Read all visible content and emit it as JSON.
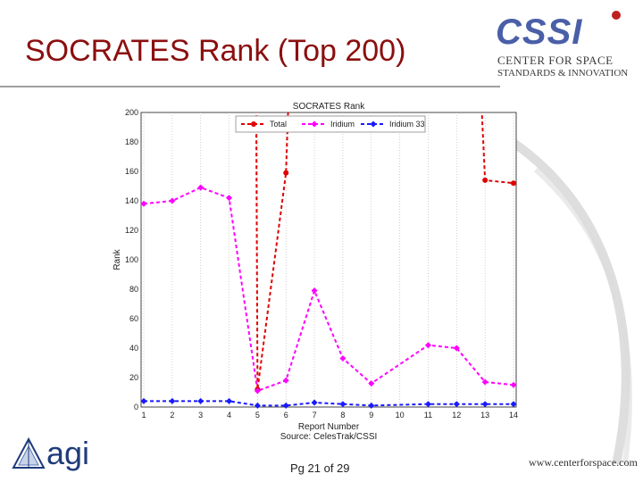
{
  "slide": {
    "title": "SOCRATES Rank (Top 200)",
    "page_label": "Pg 21 of 29",
    "website": "www.centerforspace.com"
  },
  "logos": {
    "cssi_main": "CSSI",
    "cssi_line1": "CENTER FOR SPACE",
    "cssi_line2": "STANDARDS & INNOVATION",
    "agi": "agi"
  },
  "colors": {
    "title": "#8b0f0f",
    "total": "#e00000",
    "iridium": "#ff00ff",
    "iridium33": "#1a1aff"
  },
  "chart_data": {
    "type": "line",
    "title": "SOCRATES Rank",
    "xlabel": "Report Number",
    "xlabel_source": "Source: CelesTrak/CSSI",
    "ylabel": "Rank",
    "xlim": [
      1,
      14
    ],
    "ylim": [
      0,
      200
    ],
    "x_ticks": [
      1,
      2,
      3,
      4,
      5,
      6,
      7,
      8,
      9,
      10,
      11,
      12,
      13,
      14
    ],
    "y_ticks": [
      0,
      20,
      40,
      60,
      80,
      100,
      120,
      140,
      160,
      180,
      200
    ],
    "grid": true,
    "legend_position": "top",
    "series": [
      {
        "name": "Total",
        "color": "#e00000",
        "style": "dashed",
        "marker": "circle",
        "points": [
          [
            5,
            12
          ],
          [
            6,
            159
          ],
          [
            13,
            154
          ],
          [
            14,
            152
          ]
        ],
        "note_offscale_segments": [
          [
            4.95,
            200
          ],
          [
            6.1,
            200
          ],
          [
            12.85,
            200
          ]
        ]
      },
      {
        "name": "Iridium",
        "color": "#ff00ff",
        "style": "dashed",
        "marker": "diamond",
        "points": [
          [
            1,
            138
          ],
          [
            2,
            140
          ],
          [
            3,
            149
          ],
          [
            4,
            142
          ],
          [
            5,
            11
          ],
          [
            6,
            18
          ],
          [
            7,
            79
          ],
          [
            8,
            33
          ],
          [
            9,
            16
          ],
          [
            11,
            42
          ],
          [
            12,
            40
          ],
          [
            13,
            17
          ],
          [
            14,
            15
          ]
        ]
      },
      {
        "name": "Iridium 33",
        "color": "#1a1aff",
        "style": "dashed",
        "marker": "diamond",
        "points": [
          [
            1,
            4
          ],
          [
            2,
            4
          ],
          [
            3,
            4
          ],
          [
            4,
            4
          ],
          [
            5,
            1
          ],
          [
            6,
            1
          ],
          [
            7,
            3
          ],
          [
            8,
            2
          ],
          [
            9,
            1
          ],
          [
            11,
            2
          ],
          [
            12,
            2
          ],
          [
            13,
            2
          ],
          [
            14,
            2
          ]
        ]
      }
    ]
  }
}
